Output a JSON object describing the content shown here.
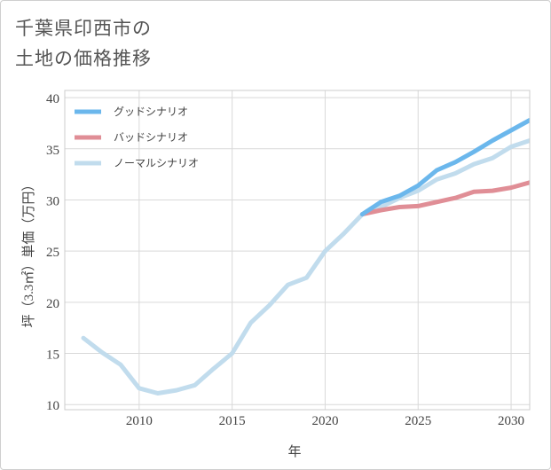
{
  "title_lines": [
    "千葉県印西市の",
    "土地の価格推移"
  ],
  "chart_data": {
    "type": "line",
    "xlabel": "年",
    "ylabel": "坪（3.3㎡）単価（万円）",
    "xlim": [
      2006,
      2031
    ],
    "ylim": [
      9.5,
      40.7
    ],
    "x_ticks": [
      2010,
      2015,
      2020,
      2025,
      2030
    ],
    "y_ticks": [
      10,
      15,
      20,
      25,
      30,
      35,
      40
    ],
    "grid": true,
    "legend_position": "top-left",
    "series": [
      {
        "name": "グッドシナリオ",
        "color": "#6bb7ec",
        "x": [
          2022,
          2023,
          2024,
          2025,
          2026,
          2027,
          2028,
          2029,
          2030,
          2031
        ],
        "values": [
          28.6,
          29.8,
          30.4,
          31.4,
          32.9,
          33.7,
          34.7,
          35.8,
          36.8,
          37.8
        ]
      },
      {
        "name": "バッドシナリオ",
        "color": "#e08e96",
        "x": [
          2022,
          2023,
          2024,
          2025,
          2026,
          2027,
          2028,
          2029,
          2030,
          2031
        ],
        "values": [
          28.6,
          29.0,
          29.3,
          29.4,
          29.8,
          30.2,
          30.8,
          30.9,
          31.2,
          31.7
        ]
      },
      {
        "name": "ノーマルシナリオ",
        "color": "#c1dced",
        "x": [
          2007,
          2008,
          2009,
          2010,
          2011,
          2012,
          2013,
          2014,
          2015,
          2016,
          2017,
          2018,
          2019,
          2020,
          2021,
          2022,
          2023,
          2024,
          2025,
          2026,
          2027,
          2028,
          2029,
          2030,
          2031
        ],
        "values": [
          16.5,
          15.1,
          13.9,
          11.6,
          11.1,
          11.4,
          11.9,
          13.5,
          15.0,
          18.0,
          19.7,
          21.7,
          22.4,
          25.0,
          26.7,
          28.6,
          29.3,
          30.2,
          30.9,
          32.0,
          32.6,
          33.5,
          34.1,
          35.2,
          35.8
        ]
      }
    ]
  }
}
